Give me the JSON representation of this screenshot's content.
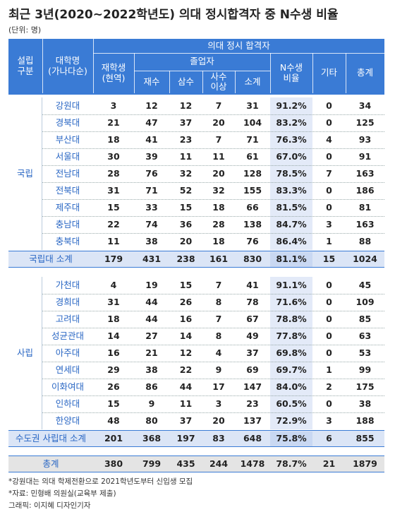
{
  "title": "최근 3년(2020~2022학년도) 의대 정시합격자 중 N수생 비율",
  "unit": "(단위: 명)",
  "table": {
    "header": {
      "group": "의대 정시 합격자",
      "graduates": "졸업자",
      "columns": [
        "설립\n구분",
        "대학명\n(가나다순)",
        "재학생\n(현역)",
        "재수",
        "삼수",
        "사수\n이상",
        "소계",
        "N수생\n비율",
        "기타",
        "총계"
      ]
    },
    "groups": [
      {
        "label": "국립",
        "rows": [
          [
            "강원대",
            "3",
            "12",
            "12",
            "7",
            "31",
            "91.2%",
            "0",
            "34"
          ],
          [
            "경북대",
            "21",
            "47",
            "37",
            "20",
            "104",
            "83.2%",
            "0",
            "125"
          ],
          [
            "부산대",
            "18",
            "41",
            "23",
            "7",
            "71",
            "76.3%",
            "4",
            "93"
          ],
          [
            "서울대",
            "30",
            "39",
            "11",
            "11",
            "61",
            "67.0%",
            "0",
            "91"
          ],
          [
            "전남대",
            "28",
            "76",
            "32",
            "20",
            "128",
            "78.5%",
            "7",
            "163"
          ],
          [
            "전북대",
            "31",
            "71",
            "52",
            "32",
            "155",
            "83.3%",
            "0",
            "186"
          ],
          [
            "제주대",
            "15",
            "33",
            "15",
            "18",
            "66",
            "81.5%",
            "0",
            "81"
          ],
          [
            "충남대",
            "22",
            "74",
            "36",
            "28",
            "138",
            "84.7%",
            "3",
            "163"
          ],
          [
            "충북대",
            "11",
            "38",
            "20",
            "18",
            "76",
            "86.4%",
            "1",
            "88"
          ]
        ],
        "subtotal": [
          "국립대 소계",
          "179",
          "431",
          "238",
          "161",
          "830",
          "81.1%",
          "15",
          "1024"
        ]
      },
      {
        "label": "사립",
        "rows": [
          [
            "가천대",
            "4",
            "19",
            "15",
            "7",
            "41",
            "91.1%",
            "0",
            "45"
          ],
          [
            "경희대",
            "31",
            "44",
            "26",
            "8",
            "78",
            "71.6%",
            "0",
            "109"
          ],
          [
            "고려대",
            "18",
            "44",
            "16",
            "7",
            "67",
            "78.8%",
            "0",
            "85"
          ],
          [
            "성균관대",
            "14",
            "27",
            "14",
            "8",
            "49",
            "77.8%",
            "0",
            "63"
          ],
          [
            "아주대",
            "16",
            "21",
            "12",
            "4",
            "37",
            "69.8%",
            "0",
            "53"
          ],
          [
            "연세대",
            "29",
            "38",
            "22",
            "9",
            "69",
            "69.7%",
            "1",
            "99"
          ],
          [
            "이화여대",
            "26",
            "86",
            "44",
            "17",
            "147",
            "84.0%",
            "2",
            "175"
          ],
          [
            "인하대",
            "15",
            "9",
            "11",
            "3",
            "23",
            "60.5%",
            "0",
            "38"
          ],
          [
            "한양대",
            "48",
            "80",
            "37",
            "20",
            "137",
            "72.9%",
            "3",
            "188"
          ]
        ],
        "subtotal": [
          "수도권 사립대 소계",
          "201",
          "368",
          "197",
          "83",
          "648",
          "75.8%",
          "6",
          "855"
        ]
      }
    ],
    "total": [
      "총계",
      "380",
      "799",
      "435",
      "244",
      "1478",
      "78.7%",
      "21",
      "1879"
    ]
  },
  "footnotes": [
    "*강원대는 의대 학제전환으로 2021학년도부터 신입생 모집",
    "*자료: 민형배 의원실(교육부 제출)",
    "그래픽: 이지혜 디자인기자"
  ]
}
